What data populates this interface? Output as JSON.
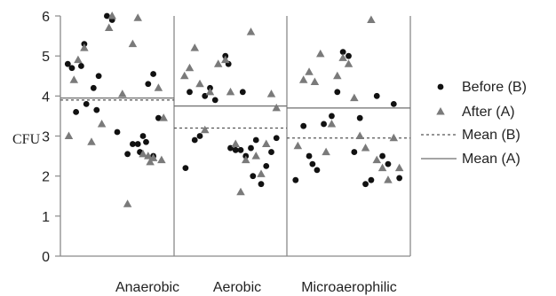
{
  "chart_data": {
    "type": "scatter",
    "title": "",
    "ylabel": "CFU",
    "ylim": [
      0,
      6
    ],
    "yticks": [
      "0",
      "1",
      "2",
      "3",
      "4",
      "5",
      "6"
    ],
    "categories": [
      "Anaerobic",
      "Aerobic",
      "Microaerophilic"
    ],
    "legend": {
      "placement": "right",
      "entries": [
        {
          "label": "Before  (B)",
          "marker": "circle"
        },
        {
          "label": "After (A)",
          "marker": "triangle"
        },
        {
          "label": "Mean (B)",
          "marker": "dashed-line"
        },
        {
          "label": "Mean  (A)",
          "marker": "solid-line"
        }
      ]
    },
    "series": [
      {
        "name": "Before  (B)",
        "marker": "circle",
        "color": "#111111",
        "values": [
          [
            [
              0.02,
              4.8
            ],
            [
              0.06,
              4.7
            ],
            [
              0.15,
              4.75
            ],
            [
              0.18,
              5.3
            ],
            [
              0.27,
              4.2
            ],
            [
              0.32,
              4.5
            ],
            [
              0.4,
              6.0
            ],
            [
              0.45,
              5.9
            ],
            [
              0.1,
              3.6
            ],
            [
              0.2,
              3.8
            ],
            [
              0.3,
              3.65
            ],
            [
              0.5,
              3.1
            ],
            [
              0.8,
              4.3
            ],
            [
              0.85,
              4.55
            ],
            [
              0.6,
              2.55
            ],
            [
              0.65,
              2.8
            ],
            [
              0.7,
              2.8
            ],
            [
              0.72,
              2.6
            ],
            [
              0.75,
              3.0
            ],
            [
              0.78,
              2.85
            ],
            [
              0.85,
              2.5
            ],
            [
              0.9,
              3.45
            ]
          ],
          [
            [
              0.06,
              2.2
            ],
            [
              0.1,
              4.1
            ],
            [
              0.15,
              2.9
            ],
            [
              0.2,
              3.0
            ],
            [
              0.25,
              4.0
            ],
            [
              0.3,
              4.2
            ],
            [
              0.35,
              3.9
            ],
            [
              0.45,
              5.0
            ],
            [
              0.48,
              4.8
            ],
            [
              0.5,
              2.7
            ],
            [
              0.55,
              2.65
            ],
            [
              0.6,
              2.65
            ],
            [
              0.62,
              4.1
            ],
            [
              0.65,
              2.5
            ],
            [
              0.7,
              2.7
            ],
            [
              0.72,
              2.0
            ],
            [
              0.75,
              2.9
            ],
            [
              0.8,
              1.8
            ],
            [
              0.85,
              2.25
            ],
            [
              0.9,
              2.6
            ],
            [
              0.95,
              2.95
            ]
          ],
          [
            [
              0.03,
              1.9
            ],
            [
              0.1,
              3.25
            ],
            [
              0.15,
              2.5
            ],
            [
              0.18,
              2.3
            ],
            [
              0.22,
              2.15
            ],
            [
              0.28,
              3.3
            ],
            [
              0.35,
              3.5
            ],
            [
              0.4,
              4.1
            ],
            [
              0.45,
              5.1
            ],
            [
              0.5,
              5.0
            ],
            [
              0.6,
              3.45
            ],
            [
              0.55,
              2.6
            ],
            [
              0.65,
              1.8
            ],
            [
              0.7,
              1.9
            ],
            [
              0.75,
              4.0
            ],
            [
              0.8,
              2.5
            ],
            [
              0.85,
              2.3
            ],
            [
              0.9,
              3.8
            ],
            [
              0.95,
              1.95
            ]
          ]
        ]
      },
      {
        "name": "After (A)",
        "marker": "triangle",
        "color": "#7a7a7a",
        "values": [
          [
            [
              0.03,
              3.0
            ],
            [
              0.08,
              4.4
            ],
            [
              0.12,
              4.9
            ],
            [
              0.18,
              5.2
            ],
            [
              0.25,
              2.85
            ],
            [
              0.35,
              3.3
            ],
            [
              0.42,
              5.7
            ],
            [
              0.45,
              6.0
            ],
            [
              0.55,
              4.05
            ],
            [
              0.6,
              1.3
            ],
            [
              0.65,
              5.3
            ],
            [
              0.7,
              5.95
            ],
            [
              0.75,
              2.55
            ],
            [
              0.8,
              2.5
            ],
            [
              0.82,
              2.35
            ],
            [
              0.85,
              2.45
            ],
            [
              0.9,
              4.2
            ],
            [
              0.93,
              2.4
            ],
            [
              0.95,
              3.45
            ]
          ],
          [
            [
              0.05,
              4.5
            ],
            [
              0.1,
              4.7
            ],
            [
              0.15,
              5.2
            ],
            [
              0.2,
              4.3
            ],
            [
              0.25,
              3.15
            ],
            [
              0.3,
              4.1
            ],
            [
              0.38,
              4.8
            ],
            [
              0.45,
              4.9
            ],
            [
              0.5,
              4.1
            ],
            [
              0.55,
              2.8
            ],
            [
              0.6,
              1.6
            ],
            [
              0.65,
              2.4
            ],
            [
              0.7,
              5.6
            ],
            [
              0.75,
              2.5
            ],
            [
              0.8,
              2.05
            ],
            [
              0.85,
              2.8
            ],
            [
              0.9,
              4.05
            ],
            [
              0.95,
              3.7
            ]
          ],
          [
            [
              0.05,
              2.75
            ],
            [
              0.1,
              4.4
            ],
            [
              0.15,
              4.6
            ],
            [
              0.2,
              4.35
            ],
            [
              0.25,
              5.05
            ],
            [
              0.3,
              2.6
            ],
            [
              0.35,
              3.3
            ],
            [
              0.4,
              4.5
            ],
            [
              0.45,
              4.95
            ],
            [
              0.5,
              4.8
            ],
            [
              0.55,
              3.95
            ],
            [
              0.6,
              3.0
            ],
            [
              0.65,
              2.7
            ],
            [
              0.7,
              5.9
            ],
            [
              0.75,
              2.4
            ],
            [
              0.8,
              2.2
            ],
            [
              0.85,
              1.9
            ],
            [
              0.9,
              2.95
            ],
            [
              0.95,
              2.2
            ]
          ]
        ]
      }
    ],
    "means": {
      "before": [
        3.9,
        3.2,
        2.95
      ],
      "after": [
        3.95,
        3.75,
        3.7
      ]
    },
    "grid": false
  }
}
